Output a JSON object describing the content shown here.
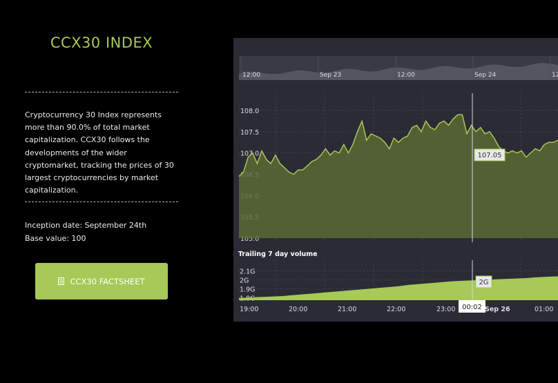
{
  "sidebar": {
    "title": "CCX30 INDEX",
    "description": "Cryptocurrency 30 Index represents more than 90.0% of total market capitalization. CCX30 follows the developments of the wider cryptomarket, tracking the prices of 30 largest cryptocurrencies by market capitalization.",
    "inception_label": "Inception date: September 24th",
    "base_label": "Base value: 100",
    "factsheet_button": "CCX30 FACTSHEET",
    "accent_color": "#a6c957"
  },
  "chart_data": {
    "type": "area",
    "navigator": {
      "ticks": [
        "12:00",
        "Sep 23",
        "12:00",
        "Sep 24",
        "12"
      ]
    },
    "price": {
      "ylim": [
        105.0,
        108.0
      ],
      "yticks": [
        "108.0",
        "107.5",
        "107.0",
        "106.5",
        "106.0",
        "105.5",
        "105.0"
      ],
      "values": [
        106.45,
        106.55,
        106.9,
        107.0,
        106.75,
        107.05,
        106.85,
        106.75,
        106.95,
        106.75,
        106.65,
        106.55,
        106.5,
        106.6,
        106.6,
        106.7,
        106.8,
        106.85,
        106.95,
        107.1,
        106.95,
        107.05,
        107.0,
        107.2,
        107.0,
        107.2,
        107.5,
        107.75,
        107.3,
        107.45,
        107.4,
        107.35,
        107.25,
        107.1,
        107.35,
        107.25,
        107.35,
        107.4,
        107.6,
        107.65,
        107.5,
        107.75,
        107.6,
        107.55,
        107.7,
        107.75,
        107.65,
        107.8,
        107.9,
        107.9,
        107.45,
        107.65,
        107.5,
        107.6,
        107.45,
        107.5,
        107.35,
        107.15,
        107.05,
        107.0,
        107.05,
        107.0,
        107.05,
        106.9,
        107.0,
        107.1,
        107.05,
        107.2,
        107.25,
        107.25,
        107.3
      ],
      "tooltip_value": "107.05"
    },
    "volume": {
      "title": "Trailing 7 day volume",
      "yticks": [
        "2.1G",
        "2G",
        "1.9G",
        "1.8G"
      ],
      "ylim": [
        1.775,
        2.15
      ],
      "values": [
        1.8,
        1.805,
        1.81,
        1.815,
        1.82,
        1.83,
        1.84,
        1.85,
        1.86,
        1.87,
        1.88,
        1.89,
        1.9,
        1.91,
        1.92,
        1.93,
        1.945,
        1.955,
        1.965,
        1.975,
        1.985,
        1.99,
        1.995,
        2.0,
        2.005,
        2.01,
        2.015,
        2.02,
        2.03,
        2.035,
        2.04
      ],
      "tooltip_value": "2G"
    },
    "xticks": [
      "19:00",
      "20:00",
      "21:00",
      "22:00",
      "23:00",
      "Sep 26",
      "01:00"
    ],
    "crosshair_label": "00:02",
    "colors": {
      "line": "#a6c957",
      "area": "#5a6a34",
      "panel": "#2b2b35",
      "grid": "#4a4a55",
      "volume_fill": "#a6c957"
    }
  }
}
